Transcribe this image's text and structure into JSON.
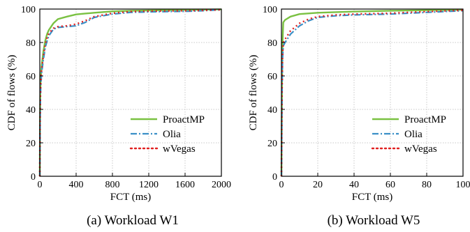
{
  "chart_data": [
    {
      "type": "line",
      "caption": "(a)  Workload W1",
      "xlabel": "FCT (ms)",
      "ylabel": "CDF of flows (%)",
      "xlim": [
        0,
        2000
      ],
      "ylim": [
        0,
        100
      ],
      "xticks": [
        0,
        400,
        800,
        1200,
        1600,
        2000
      ],
      "yticks": [
        0,
        20,
        40,
        60,
        80,
        100
      ],
      "grid": true,
      "legend": "bottom-right",
      "series": [
        {
          "name": "ProactMP",
          "color": "#7ac142",
          "style": "solid",
          "points": [
            [
              0,
              0
            ],
            [
              2,
              30
            ],
            [
              5,
              48
            ],
            [
              10,
              58
            ],
            [
              20,
              66
            ],
            [
              40,
              75
            ],
            [
              60,
              81
            ],
            [
              80,
              85
            ],
            [
              100,
              87.5
            ],
            [
              150,
              91.5
            ],
            [
              200,
              94
            ],
            [
              300,
              95.5
            ],
            [
              400,
              96.8
            ],
            [
              500,
              97.3
            ],
            [
              600,
              97.8
            ],
            [
              800,
              98.6
            ],
            [
              1000,
              99
            ],
            [
              1200,
              99.2
            ],
            [
              1600,
              99.5
            ],
            [
              2000,
              99.8
            ]
          ]
        },
        {
          "name": "Olia",
          "color": "#3a8fc7",
          "style": "dashdot",
          "points": [
            [
              0,
              0
            ],
            [
              2,
              25
            ],
            [
              5,
              42
            ],
            [
              10,
              53
            ],
            [
              20,
              62
            ],
            [
              40,
              70
            ],
            [
              60,
              77
            ],
            [
              80,
              81
            ],
            [
              100,
              84
            ],
            [
              150,
              88
            ],
            [
              200,
              89
            ],
            [
              300,
              89.5
            ],
            [
              400,
              90
            ],
            [
              500,
              92
            ],
            [
              600,
              95
            ],
            [
              700,
              96
            ],
            [
              800,
              97
            ],
            [
              1000,
              98
            ],
            [
              1200,
              98.3
            ],
            [
              1400,
              98.5
            ],
            [
              1600,
              98.6
            ],
            [
              1800,
              99
            ],
            [
              2000,
              99.6
            ]
          ]
        },
        {
          "name": "wVegas",
          "color": "#e02020",
          "style": "dotted",
          "points": [
            [
              0,
              0
            ],
            [
              2,
              27
            ],
            [
              5,
              45
            ],
            [
              10,
              55
            ],
            [
              20,
              64
            ],
            [
              40,
              72
            ],
            [
              60,
              79
            ],
            [
              80,
              83
            ],
            [
              100,
              85.5
            ],
            [
              150,
              88.5
            ],
            [
              200,
              89.5
            ],
            [
              300,
              90
            ],
            [
              400,
              91
            ],
            [
              500,
              93
            ],
            [
              600,
              95.5
            ],
            [
              700,
              96.5
            ],
            [
              800,
              97.5
            ],
            [
              1000,
              98.5
            ],
            [
              1200,
              98.8
            ],
            [
              1400,
              98.9
            ],
            [
              1600,
              99
            ],
            [
              1800,
              99.2
            ],
            [
              2000,
              99.6
            ]
          ]
        }
      ]
    },
    {
      "type": "line",
      "caption": "(b)  Workload W5",
      "xlabel": "FCT (ms)",
      "ylabel": "CDF of flows (%)",
      "xlim": [
        0,
        100
      ],
      "ylim": [
        0,
        100
      ],
      "xticks": [
        0,
        20,
        40,
        60,
        80,
        100
      ],
      "yticks": [
        0,
        20,
        40,
        60,
        80,
        100
      ],
      "grid": true,
      "legend": "bottom-right",
      "series": [
        {
          "name": "ProactMP",
          "color": "#7ac142",
          "style": "solid",
          "points": [
            [
              0,
              0
            ],
            [
              0.3,
              55
            ],
            [
              0.6,
              80
            ],
            [
              1,
              92
            ],
            [
              2,
              93.5
            ],
            [
              5,
              95.5
            ],
            [
              10,
              97
            ],
            [
              20,
              97.8
            ],
            [
              40,
              98.5
            ],
            [
              60,
              99
            ],
            [
              80,
              99.3
            ],
            [
              100,
              99.6
            ]
          ]
        },
        {
          "name": "Olia",
          "color": "#3a8fc7",
          "style": "dashdot",
          "points": [
            [
              0,
              0
            ],
            [
              0.3,
              48
            ],
            [
              0.6,
              70
            ],
            [
              1,
              78
            ],
            [
              2,
              80
            ],
            [
              5,
              85
            ],
            [
              10,
              90
            ],
            [
              15,
              93
            ],
            [
              20,
              95
            ],
            [
              30,
              96
            ],
            [
              40,
              96.5
            ],
            [
              60,
              97
            ],
            [
              80,
              98
            ],
            [
              100,
              99
            ]
          ]
        },
        {
          "name": "wVegas",
          "color": "#e02020",
          "style": "dotted",
          "points": [
            [
              0,
              0
            ],
            [
              0.3,
              50
            ],
            [
              0.6,
              72
            ],
            [
              1,
              80
            ],
            [
              2,
              82
            ],
            [
              5,
              87
            ],
            [
              10,
              91.5
            ],
            [
              15,
              94
            ],
            [
              20,
              95.5
            ],
            [
              30,
              96.5
            ],
            [
              40,
              97
            ],
            [
              60,
              97.5
            ],
            [
              80,
              98.5
            ],
            [
              100,
              99.3
            ]
          ]
        }
      ]
    }
  ]
}
